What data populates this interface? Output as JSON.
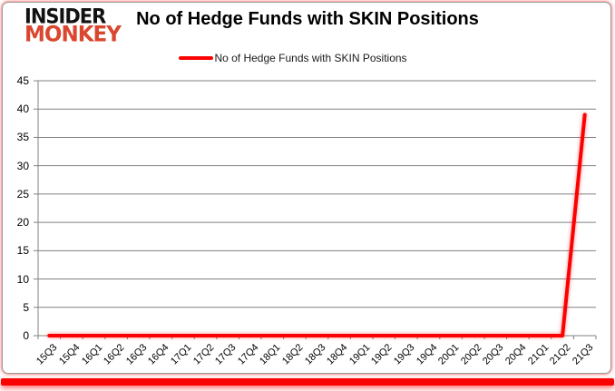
{
  "logo": {
    "line1": "INSIDER",
    "line2": "MONKEY",
    "accent_color": "#d9472f"
  },
  "header": {
    "title": "No of Hedge Funds with SKIN Positions"
  },
  "legend": {
    "label": "No of Hedge Funds with SKIN Positions",
    "marker_color": "#fb0202"
  },
  "colors": {
    "series": "#fb0202",
    "gridline": "#808080",
    "axis": "#808080",
    "text": "#000000",
    "frame_border": "#9a9a9a",
    "frame_glow": "#ff5a5a",
    "background": "#ffffff"
  },
  "chart_data": {
    "type": "line",
    "title": "No of Hedge Funds with SKIN Positions",
    "categories": [
      "15Q3",
      "15Q4",
      "16Q1",
      "16Q2",
      "16Q3",
      "16Q4",
      "17Q1",
      "17Q2",
      "17Q3",
      "17Q4",
      "18Q1",
      "18Q2",
      "18Q3",
      "18Q4",
      "19Q1",
      "19Q2",
      "19Q3",
      "19Q4",
      "20Q1",
      "20Q2",
      "20Q3",
      "20Q4",
      "21Q1",
      "21Q2",
      "21Q3"
    ],
    "series": [
      {
        "name": "No of Hedge Funds with SKIN Positions",
        "color": "#fb0202",
        "values": [
          0,
          0,
          0,
          0,
          0,
          0,
          0,
          0,
          0,
          0,
          0,
          0,
          0,
          0,
          0,
          0,
          0,
          0,
          0,
          0,
          0,
          0,
          0,
          0,
          39
        ]
      }
    ],
    "xlabel": "",
    "ylabel": "",
    "ylim": [
      0,
      45
    ],
    "yticks": [
      0,
      5,
      10,
      15,
      20,
      25,
      30,
      35,
      40,
      45
    ],
    "grid": "horizontal",
    "legend_position": "top"
  }
}
